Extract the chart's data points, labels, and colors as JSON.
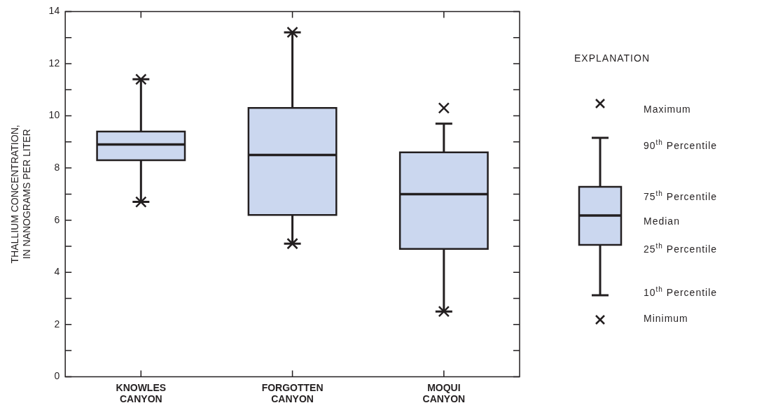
{
  "chart_data": {
    "type": "box",
    "categories": [
      "KNOWLES CANYON",
      "FORGOTTEN CANYON",
      "MOQUI CANYON"
    ],
    "ylabel": "THALLIUM CONCENTRATION,\nIN NANOGRAMS PER LITER",
    "ylim": [
      0,
      14
    ],
    "yticks": [
      0,
      {
        "value": 1,
        "label": null
      },
      2,
      {
        "value": 3,
        "label": null
      },
      4,
      {
        "value": 5,
        "label": null
      },
      6,
      {
        "value": 7,
        "label": null
      },
      8,
      {
        "value": 9,
        "label": null
      },
      10,
      {
        "value": 11,
        "label": null
      },
      12,
      {
        "value": 13,
        "label": null
      },
      14
    ],
    "series": [
      {
        "color": "#cbd7ef",
        "boxes": [
          {
            "low": 6.7,
            "q1": 8.3,
            "median": 8.9,
            "q3": 9.4,
            "high": 11.4,
            "outliers": [
              6.7,
              11.4
            ]
          },
          {
            "low": 5.1,
            "q1": 6.2,
            "median": 8.5,
            "q3": 10.3,
            "high": 13.2,
            "outliers": [
              5.1,
              13.2
            ]
          },
          {
            "low": 2.5,
            "q1": 4.9,
            "median": 7.0,
            "q3": 8.6,
            "high": 9.7,
            "outliers": [
              2.5,
              10.3
            ]
          }
        ]
      }
    ],
    "annotations": [
      "EXPLANATION",
      "Maximum",
      "90$^{th}$ Percentile",
      "75$^{th}$ Percentile",
      "Median",
      "25$^{th}$ Percentile",
      "10$^{th}$ Percentile",
      "Minimum"
    ]
  }
}
